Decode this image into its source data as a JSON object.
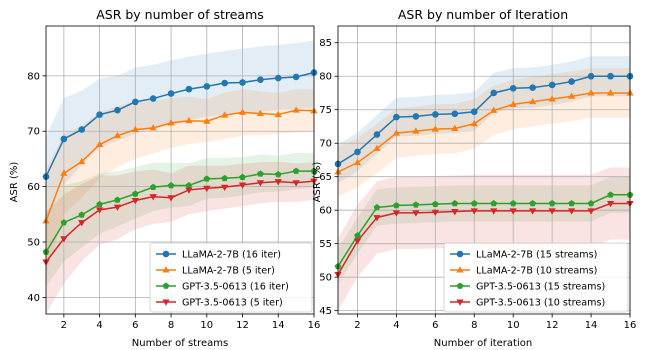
{
  "chart_data": [
    {
      "type": "line",
      "title": "ASR by number of streams",
      "xlabel": "Number of streams",
      "ylabel": "ASR (%)",
      "xlim": [
        1,
        16
      ],
      "ylim": [
        37,
        89
      ],
      "x_ticks": [
        2,
        4,
        6,
        8,
        10,
        12,
        14,
        16
      ],
      "y_ticks": [
        40,
        50,
        60,
        70,
        80
      ],
      "grid": true,
      "legend_position": "lower-right",
      "x": [
        1,
        2,
        3,
        4,
        5,
        6,
        7,
        8,
        9,
        10,
        11,
        12,
        13,
        14,
        15,
        16
      ],
      "series": [
        {
          "name": "LLaMA-2-7B (16 iter)",
          "color": "#1f77b4",
          "marker": "circle",
          "values": [
            61.8,
            68.6,
            70.3,
            73.0,
            73.8,
            75.3,
            75.9,
            76.8,
            77.6,
            78.1,
            78.7,
            78.8,
            79.3,
            79.6,
            79.8,
            80.6
          ],
          "band_low": [
            54.5,
            60.3,
            64.0,
            67.0,
            68.3,
            69.5,
            70.5,
            71.0,
            72.0,
            72.6,
            73.0,
            73.2,
            73.5,
            73.8,
            74.0,
            74.3
          ],
          "band_high": [
            69.0,
            76.0,
            77.3,
            79.5,
            80.0,
            81.5,
            82.0,
            82.8,
            83.5,
            84.0,
            84.5,
            84.9,
            85.3,
            85.6,
            85.9,
            86.4
          ]
        },
        {
          "name": "LLaMA-2-7B (5 iter)",
          "color": "#ff7f0e",
          "marker": "triangle-up",
          "values": [
            53.8,
            62.4,
            64.5,
            67.6,
            69.2,
            70.3,
            70.6,
            71.5,
            71.9,
            71.8,
            72.9,
            73.4,
            73.2,
            73.0,
            73.8,
            73.7
          ],
          "band_low": [
            44.0,
            55.0,
            58.0,
            61.5,
            63.5,
            65.0,
            66.0,
            67.0,
            67.7,
            68.0,
            68.6,
            69.2,
            69.3,
            69.5,
            69.8,
            70.0
          ],
          "band_high": [
            63.0,
            69.5,
            71.0,
            73.5,
            74.5,
            75.5,
            75.5,
            76.0,
            76.2,
            75.8,
            77.0,
            77.6,
            77.2,
            76.9,
            77.6,
            77.5
          ]
        },
        {
          "name": "GPT-3.5-0613 (16 iter)",
          "color": "#2ca02c",
          "marker": "pentagon",
          "values": [
            48.2,
            53.5,
            54.9,
            56.8,
            57.6,
            58.7,
            59.9,
            60.2,
            60.2,
            61.4,
            61.5,
            61.7,
            62.3,
            62.2,
            62.8,
            62.8
          ],
          "band_low": [
            42.0,
            46.5,
            49.0,
            51.5,
            52.8,
            54.2,
            55.6,
            56.2,
            56.5,
            57.8,
            58.0,
            58.4,
            59.0,
            59.1,
            59.6,
            59.8
          ],
          "band_high": [
            55.0,
            60.2,
            61.0,
            62.4,
            62.8,
            63.5,
            64.3,
            64.3,
            64.2,
            65.2,
            65.2,
            65.3,
            65.8,
            65.6,
            66.1,
            66.0
          ]
        },
        {
          "name": "GPT-3.5-0613 (5 iter)",
          "color": "#d62728",
          "marker": "triangle-down",
          "values": [
            46.4,
            50.6,
            53.5,
            55.8,
            56.3,
            57.5,
            58.2,
            58.0,
            59.4,
            59.7,
            59.9,
            60.3,
            60.7,
            60.9,
            60.7,
            61.0
          ],
          "band_low": [
            37.0,
            42.5,
            46.5,
            49.5,
            50.5,
            52.3,
            53.3,
            53.6,
            55.0,
            55.6,
            56.0,
            56.5,
            57.0,
            57.3,
            57.2,
            57.6
          ],
          "band_high": [
            55.5,
            58.5,
            60.5,
            62.0,
            62.0,
            62.7,
            63.1,
            62.4,
            63.8,
            63.8,
            63.8,
            64.1,
            64.4,
            64.5,
            64.2,
            64.4
          ]
        }
      ]
    },
    {
      "type": "line",
      "title": "ASR by number of Iteration",
      "xlabel": "Number of iteration",
      "ylabel": "ASR (%)",
      "xlim": [
        1,
        16
      ],
      "ylim": [
        44.5,
        87.5
      ],
      "x_ticks": [
        2,
        4,
        6,
        8,
        10,
        12,
        14,
        16
      ],
      "y_ticks": [
        45,
        50,
        55,
        60,
        65,
        70,
        75,
        80,
        85
      ],
      "grid": true,
      "legend_position": "lower-right",
      "x": [
        1,
        2,
        3,
        4,
        5,
        6,
        7,
        8,
        9,
        10,
        11,
        12,
        13,
        14,
        15,
        16
      ],
      "series": [
        {
          "name": "LLaMA-2-7B (15 streams)",
          "color": "#1f77b4",
          "marker": "circle",
          "values": [
            66.9,
            68.7,
            71.3,
            73.9,
            74.0,
            74.3,
            74.4,
            74.7,
            77.5,
            78.2,
            78.3,
            78.7,
            79.2,
            80.0,
            80.0,
            80.0
          ],
          "band_low": [
            64.0,
            65.8,
            68.4,
            71.0,
            71.1,
            71.4,
            71.5,
            71.8,
            74.5,
            75.2,
            75.3,
            75.7,
            76.2,
            77.0,
            77.0,
            77.0
          ],
          "band_high": [
            69.8,
            71.6,
            74.2,
            76.8,
            76.9,
            77.2,
            77.3,
            77.6,
            80.5,
            81.2,
            81.3,
            81.7,
            82.2,
            83.0,
            83.0,
            83.0
          ]
        },
        {
          "name": "LLaMA-2-7B (10 streams)",
          "color": "#ff7f0e",
          "marker": "triangle-up",
          "values": [
            65.7,
            67.1,
            69.2,
            71.5,
            71.8,
            72.1,
            72.2,
            72.9,
            74.9,
            75.8,
            76.2,
            76.6,
            77.0,
            77.5,
            77.5,
            77.5
          ],
          "band_low": [
            62.0,
            63.4,
            65.5,
            67.8,
            68.1,
            68.4,
            68.5,
            69.2,
            71.2,
            72.1,
            72.5,
            72.9,
            73.3,
            73.8,
            73.8,
            73.8
          ],
          "band_high": [
            69.4,
            70.8,
            72.9,
            75.2,
            75.5,
            75.8,
            75.9,
            76.6,
            78.6,
            79.5,
            79.9,
            80.3,
            80.7,
            81.2,
            81.2,
            81.2
          ]
        },
        {
          "name": "GPT-3.5-0613 (15 streams)",
          "color": "#2ca02c",
          "marker": "pentagon",
          "values": [
            51.6,
            56.2,
            60.4,
            60.7,
            60.8,
            60.9,
            61.0,
            61.0,
            61.0,
            61.0,
            61.0,
            61.0,
            61.0,
            61.0,
            62.3,
            62.3
          ],
          "band_low": [
            49.0,
            53.5,
            57.7,
            58.0,
            58.1,
            58.2,
            58.3,
            58.3,
            58.3,
            58.3,
            58.3,
            58.3,
            58.3,
            58.3,
            59.6,
            59.6
          ],
          "band_high": [
            54.2,
            58.9,
            63.1,
            63.4,
            63.5,
            63.6,
            63.7,
            63.7,
            63.7,
            63.7,
            63.7,
            63.7,
            63.7,
            63.7,
            65.0,
            65.0
          ]
        },
        {
          "name": "GPT-3.5-0613 (10 streams)",
          "color": "#d62728",
          "marker": "triangle-down",
          "values": [
            50.4,
            55.4,
            58.9,
            59.6,
            59.6,
            59.7,
            59.8,
            59.9,
            59.9,
            59.9,
            59.9,
            59.9,
            59.9,
            59.9,
            61.0,
            61.0
          ],
          "band_low": [
            45.0,
            50.0,
            53.5,
            54.2,
            54.2,
            54.3,
            54.4,
            54.5,
            54.5,
            54.5,
            54.5,
            54.5,
            54.5,
            54.5,
            55.6,
            55.6
          ],
          "band_high": [
            55.8,
            60.8,
            64.3,
            65.0,
            65.0,
            65.1,
            65.2,
            65.3,
            65.3,
            65.3,
            65.3,
            65.3,
            65.3,
            65.3,
            66.4,
            66.4
          ]
        }
      ]
    }
  ]
}
